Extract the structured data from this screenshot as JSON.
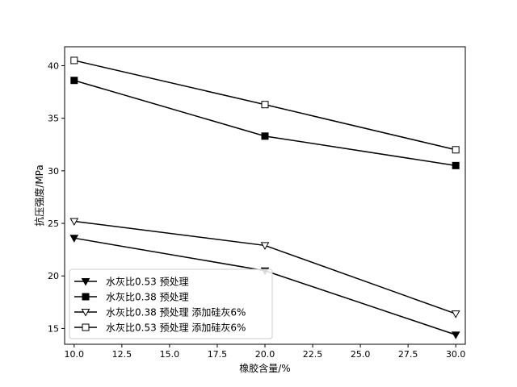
{
  "chart_data": {
    "type": "line",
    "title": "",
    "xlabel": "橡胶含量/%",
    "ylabel": "抗压强度/MPa",
    "x": [
      10.0,
      20.0,
      30.0
    ],
    "xlim": [
      9.5,
      30.5
    ],
    "ylim": [
      13.5,
      41.8
    ],
    "xticks": [
      10.0,
      12.5,
      15.0,
      17.5,
      20.0,
      22.5,
      25.0,
      27.5,
      30.0
    ],
    "xtick_labels": [
      "10.0",
      "12.5",
      "15.0",
      "17.5",
      "20.0",
      "22.5",
      "25.0",
      "27.5",
      "30.0"
    ],
    "yticks": [
      15,
      20,
      25,
      30,
      35,
      40
    ],
    "ytick_labels": [
      "15",
      "20",
      "25",
      "30",
      "35",
      "40"
    ],
    "grid": false,
    "legend_position": "lower-left",
    "series": [
      {
        "name": "水灰比0.53 预处理",
        "marker": "triangle-down-filled",
        "values": [
          23.6,
          20.5,
          14.4
        ]
      },
      {
        "name": "水灰比0.38 预处理",
        "marker": "square-filled",
        "values": [
          38.6,
          33.3,
          30.5
        ]
      },
      {
        "name": "水灰比0.38 预处理 添加硅灰6%",
        "marker": "triangle-down-open",
        "values": [
          25.2,
          22.9,
          16.4
        ]
      },
      {
        "name": "水灰比0.53 预处理 添加硅灰6%",
        "marker": "square-open",
        "values": [
          40.5,
          36.3,
          32.0
        ]
      }
    ],
    "colors": {
      "line": "#000000",
      "background": "#ffffff"
    }
  }
}
